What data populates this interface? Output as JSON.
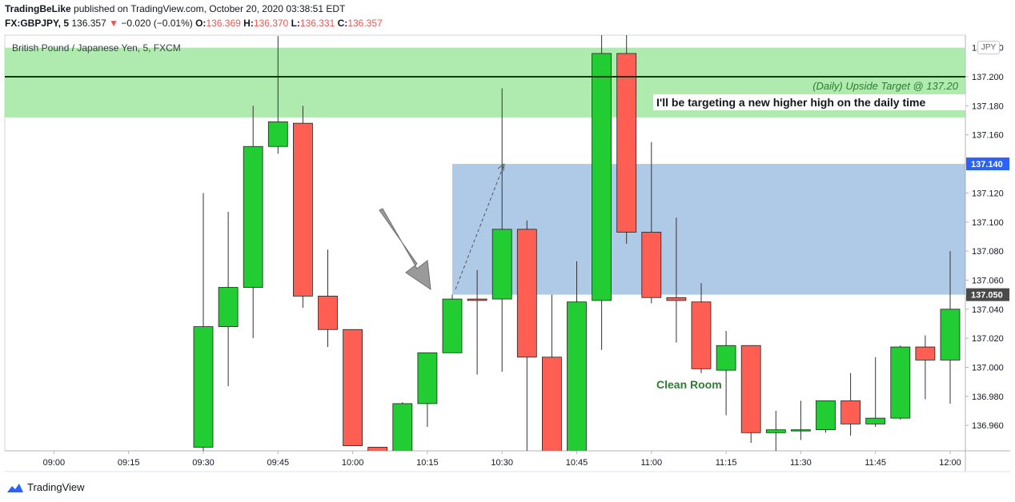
{
  "header": {
    "publisher": "TradingBeLike",
    "published_text": "published on TradingView.com, October 20, 2020 03:38:51 EDT",
    "symbol": "FX:GBPJPY, 5",
    "last": "136.357",
    "change_arrow": "▼",
    "change": "−0.020 (−0.01%)",
    "o_label": "O:",
    "o_value": "136.369",
    "h_label": "H:",
    "h_value": "136.370",
    "l_label": "L:",
    "l_value": "136.331",
    "c_label": "C:",
    "c_value": "136.357"
  },
  "chart_title": "British Pound / Japanese Yen, 5, FXCM",
  "currency": "JPY",
  "footer": {
    "brand": "TradingView"
  },
  "colors": {
    "up": "#22cc33",
    "down": "#ff5e52",
    "resistance_zone": "#9be59a",
    "target_box": "#6d9fd4",
    "header_red": "#ef5350",
    "price_marker_blue": "#2962ff",
    "price_marker_dark": "#4a4a4a"
  },
  "chart_data": {
    "type": "candlestick",
    "y_ticks": [
      136.96,
      136.98,
      137.0,
      137.02,
      137.04,
      137.06,
      137.08,
      137.1,
      137.12,
      137.14,
      137.16,
      137.18,
      137.2
    ],
    "y_tick_labels": [
      "136.960",
      "136.980",
      "137.000",
      "137.020",
      "137.040",
      "137.060",
      "137.080",
      "137.100",
      "137.120",
      "137.140",
      "137.160",
      "137.180",
      "137.200"
    ],
    "y_top_label": "137.220",
    "x_ticks": [
      "09:00",
      "09:15",
      "09:30",
      "09:45",
      "10:00",
      "10:15",
      "10:30",
      "10:45",
      "11:00",
      "11:15",
      "11:30",
      "11:45",
      "12:00"
    ],
    "candles": [
      {
        "time": "09:30",
        "o": 136.945,
        "h": 137.12,
        "l": 136.94,
        "c": 137.028
      },
      {
        "time": "09:35",
        "o": 137.028,
        "h": 137.107,
        "l": 136.987,
        "c": 137.055
      },
      {
        "time": "09:40",
        "o": 137.055,
        "h": 137.18,
        "l": 137.02,
        "c": 137.152
      },
      {
        "time": "09:45",
        "o": 137.152,
        "h": 137.228,
        "l": 137.147,
        "c": 137.169
      },
      {
        "time": "09:50",
        "o": 137.168,
        "h": 137.18,
        "l": 137.041,
        "c": 137.049
      },
      {
        "time": "09:55",
        "o": 137.049,
        "h": 137.081,
        "l": 137.014,
        "c": 137.026
      },
      {
        "time": "10:00",
        "o": 137.026,
        "h": 137.026,
        "l": 136.946,
        "c": 136.946
      },
      {
        "time": "10:05",
        "o": 136.945,
        "h": 136.945,
        "l": 136.9,
        "c": 136.9
      },
      {
        "time": "10:10",
        "o": 136.94,
        "h": 136.976,
        "l": 136.93,
        "c": 136.975
      },
      {
        "time": "10:15",
        "o": 136.975,
        "h": 137.01,
        "l": 136.959,
        "c": 137.01
      },
      {
        "time": "10:20",
        "o": 137.01,
        "h": 137.05,
        "l": 137.01,
        "c": 137.047
      },
      {
        "time": "10:25",
        "o": 137.047,
        "h": 137.067,
        "l": 136.995,
        "c": 137.046
      },
      {
        "time": "10:30",
        "o": 137.047,
        "h": 137.192,
        "l": 136.997,
        "c": 137.095
      },
      {
        "time": "10:35",
        "o": 137.095,
        "h": 137.101,
        "l": 136.92,
        "c": 137.007
      },
      {
        "time": "10:40",
        "o": 137.007,
        "h": 137.05,
        "l": 136.9,
        "c": 136.93
      },
      {
        "time": "10:45",
        "o": 136.93,
        "h": 137.073,
        "l": 136.92,
        "c": 137.045
      },
      {
        "time": "10:50",
        "o": 137.046,
        "h": 137.23,
        "l": 137.012,
        "c": 137.216
      },
      {
        "time": "10:55",
        "o": 137.216,
        "h": 137.23,
        "l": 137.085,
        "c": 137.093
      },
      {
        "time": "11:00",
        "o": 137.093,
        "h": 137.155,
        "l": 137.044,
        "c": 137.048
      },
      {
        "time": "11:05",
        "o": 137.048,
        "h": 137.103,
        "l": 137.017,
        "c": 137.046
      },
      {
        "time": "11:10",
        "o": 137.045,
        "h": 137.058,
        "l": 136.996,
        "c": 136.999
      },
      {
        "time": "11:15",
        "o": 136.998,
        "h": 137.025,
        "l": 136.967,
        "c": 137.015
      },
      {
        "time": "11:20",
        "o": 137.015,
        "h": 137.015,
        "l": 136.948,
        "c": 136.955
      },
      {
        "time": "11:25",
        "o": 136.955,
        "h": 136.97,
        "l": 136.94,
        "c": 136.957
      },
      {
        "time": "11:30",
        "o": 136.957,
        "h": 136.977,
        "l": 136.95,
        "c": 136.957
      },
      {
        "time": "11:35",
        "o": 136.957,
        "h": 136.977,
        "l": 136.955,
        "c": 136.977
      },
      {
        "time": "11:40",
        "o": 136.977,
        "h": 136.996,
        "l": 136.953,
        "c": 136.961
      },
      {
        "time": "11:45",
        "o": 136.961,
        "h": 137.007,
        "l": 136.959,
        "c": 136.965
      },
      {
        "time": "11:50",
        "o": 136.965,
        "h": 137.015,
        "l": 136.964,
        "c": 137.014
      },
      {
        "time": "11:55",
        "o": 137.014,
        "h": 137.022,
        "l": 136.978,
        "c": 137.005
      },
      {
        "time": "12:00",
        "o": 137.005,
        "h": 137.08,
        "l": 136.975,
        "c": 137.04
      }
    ],
    "resistance_zone": {
      "from": 137.172,
      "to": 137.22
    },
    "target_line": {
      "value": 137.2,
      "label": "(Daily) Upside Target @ 137.20"
    },
    "target_box": {
      "from": 137.05,
      "to": 137.14,
      "start_time": "10:20"
    },
    "price_markers": [
      {
        "value": 137.14,
        "label": "137.140"
      },
      {
        "value": 137.05,
        "label": "137.050"
      }
    ],
    "annotations": {
      "note": "I'll be targeting a new higher high on the daily time",
      "clean_room": "Clean Room"
    }
  }
}
